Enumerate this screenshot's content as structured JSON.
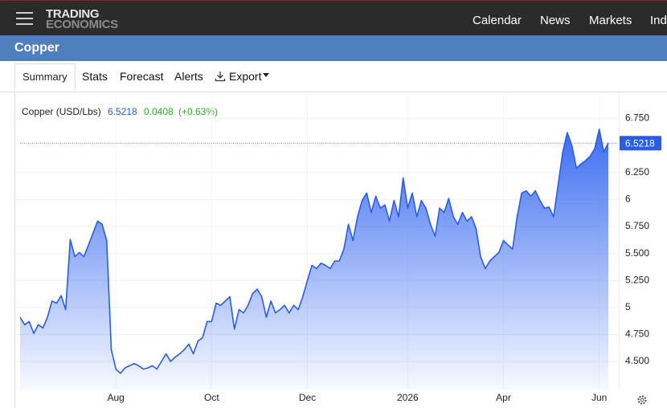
{
  "header": {
    "logo_line1": "TRADING",
    "logo_line2": "ECONOMICS",
    "nav": [
      "Calendar",
      "News",
      "Markets",
      "Ind"
    ]
  },
  "page_title": "Copper",
  "tabs": [
    "Summary",
    "Stats",
    "Forecast",
    "Alerts",
    "Export"
  ],
  "chart_data": {
    "type": "area",
    "legend": {
      "name": "Copper (USD/Lbs)",
      "change": "0.0408",
      "change_pct": "(+0.63%)"
    },
    "categories": [
      null,
      null,
      null,
      null,
      null,
      null,
      null,
      null,
      null,
      null,
      null,
      null,
      null,
      null,
      null,
      null,
      null,
      null,
      null,
      null,
      null,
      "Aug",
      null,
      null,
      null,
      null,
      null,
      null,
      null,
      null,
      null,
      null,
      null,
      null,
      null,
      null,
      null,
      null,
      null,
      null,
      null,
      null,
      "Oct",
      null,
      null,
      null,
      null,
      null,
      null,
      null,
      null,
      null,
      null,
      null,
      null,
      null,
      null,
      null,
      null,
      null,
      null,
      null,
      null,
      "Dec",
      null,
      null,
      null,
      null,
      null,
      null,
      null,
      null,
      null,
      null,
      null,
      null,
      null,
      null,
      null,
      null,
      null,
      null,
      null,
      null,
      null,
      "2026",
      null,
      null,
      null,
      null,
      null,
      null,
      null,
      null,
      null,
      null,
      null,
      null,
      null,
      null,
      null,
      null,
      null,
      null,
      null,
      null,
      "Apr",
      null,
      null,
      null,
      null,
      null,
      null,
      null,
      null,
      null,
      null,
      null,
      null,
      null,
      null,
      null,
      null,
      null,
      null,
      null,
      null,
      "Jun",
      null,
      null
    ],
    "series": [
      {
        "name": "Copper",
        "color": "#2b5ce6",
        "values": [
          4.91,
          4.84,
          4.87,
          4.76,
          4.84,
          4.81,
          4.91,
          5.06,
          5.04,
          5.11,
          4.98,
          5.63,
          5.47,
          5.51,
          5.47,
          5.58,
          5.69,
          5.8,
          5.77,
          5.62,
          4.61,
          4.43,
          4.39,
          4.44,
          4.46,
          4.48,
          4.46,
          4.43,
          4.44,
          4.46,
          4.43,
          4.5,
          4.57,
          4.5,
          4.54,
          4.57,
          4.61,
          4.66,
          4.57,
          4.69,
          4.72,
          4.87,
          4.87,
          5.04,
          5.02,
          5.06,
          5.1,
          4.8,
          4.98,
          4.95,
          5.02,
          5.13,
          5.17,
          5.1,
          4.91,
          5.06,
          4.95,
          4.98,
          5.02,
          4.95,
          5.02,
          4.98,
          5.1,
          5.25,
          5.39,
          5.36,
          5.41,
          5.39,
          5.36,
          5.43,
          5.43,
          5.54,
          5.77,
          5.62,
          5.84,
          5.99,
          6.06,
          5.88,
          6.03,
          5.92,
          5.95,
          5.8,
          5.99,
          5.84,
          6.2,
          5.92,
          6.06,
          5.84,
          5.99,
          5.92,
          5.77,
          5.66,
          5.92,
          5.88,
          6.01,
          5.84,
          5.77,
          5.88,
          5.8,
          5.84,
          5.73,
          5.47,
          5.36,
          5.43,
          5.47,
          5.51,
          5.62,
          5.58,
          5.54,
          5.84,
          6.06,
          6.08,
          6.03,
          6.08,
          5.99,
          5.92,
          5.93,
          5.84,
          6.14,
          6.44,
          6.62,
          6.5,
          6.29,
          6.33,
          6.36,
          6.4,
          6.47,
          6.65,
          6.44,
          6.5218
        ]
      }
    ],
    "ylim": [
      4.24,
      6.97
    ],
    "yticks": [
      {
        "value": 4.5,
        "label": "4.500"
      },
      {
        "value": 4.75,
        "label": "4.750"
      },
      5,
      {
        "value": 5.25,
        "label": "5.250"
      },
      {
        "value": 5.5,
        "label": "5.500"
      },
      {
        "value": 5.75,
        "label": "5.750"
      },
      6,
      {
        "value": 6.25,
        "label": "6.250"
      },
      {
        "value": 6.75,
        "label": "6.750"
      }
    ],
    "grid": true
  }
}
